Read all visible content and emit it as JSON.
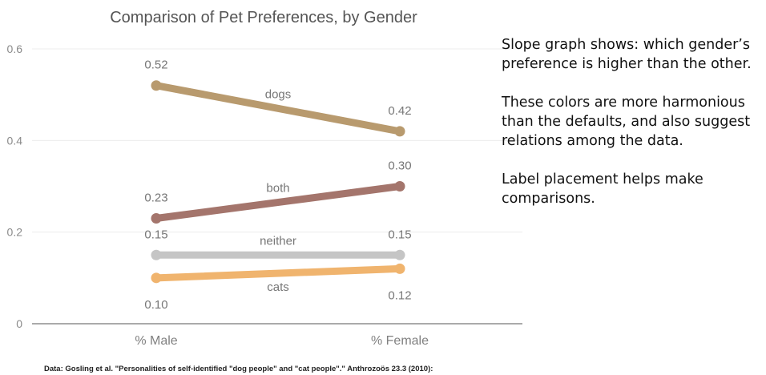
{
  "chart_data": {
    "type": "line",
    "title": "Comparison of Pet Preferences, by Gender",
    "categories": [
      "% Male",
      "% Female"
    ],
    "ylim": [
      0,
      0.6
    ],
    "yticks": [
      0,
      0.2,
      0.4,
      0.6
    ],
    "ytick_labels": [
      "0",
      "0.2",
      "0.4",
      "0.6"
    ],
    "grid": true,
    "series": [
      {
        "name": "dogs",
        "values": [
          0.52,
          0.42
        ],
        "value_labels": [
          "0.52",
          "0.42"
        ],
        "color": "#b89a6e",
        "label_pos": "above"
      },
      {
        "name": "both",
        "values": [
          0.23,
          0.3
        ],
        "value_labels": [
          "0.23",
          "0.30"
        ],
        "color": "#a4756c",
        "label_pos": "above"
      },
      {
        "name": "neither",
        "values": [
          0.15,
          0.15
        ],
        "value_labels": [
          "0.15",
          "0.15"
        ],
        "color": "#c5c5c5",
        "label_pos": "above"
      },
      {
        "name": "cats",
        "values": [
          0.1,
          0.12
        ],
        "value_labels": [
          "0.10",
          "0.12"
        ],
        "color": "#f0b46e",
        "label_pos": "below"
      }
    ],
    "source": "Data: Gosling et al. \"Personalities of self-identified \"dog people\" and \"cat people\".\" Anthrozoös 23.3 (2010):"
  },
  "notes": [
    "Slope graph shows: which gender’s preference is higher than the other.",
    "These colors are more harmonious than the defaults, and also suggest relations among the data.",
    "Label placement helps make comparisons."
  ]
}
